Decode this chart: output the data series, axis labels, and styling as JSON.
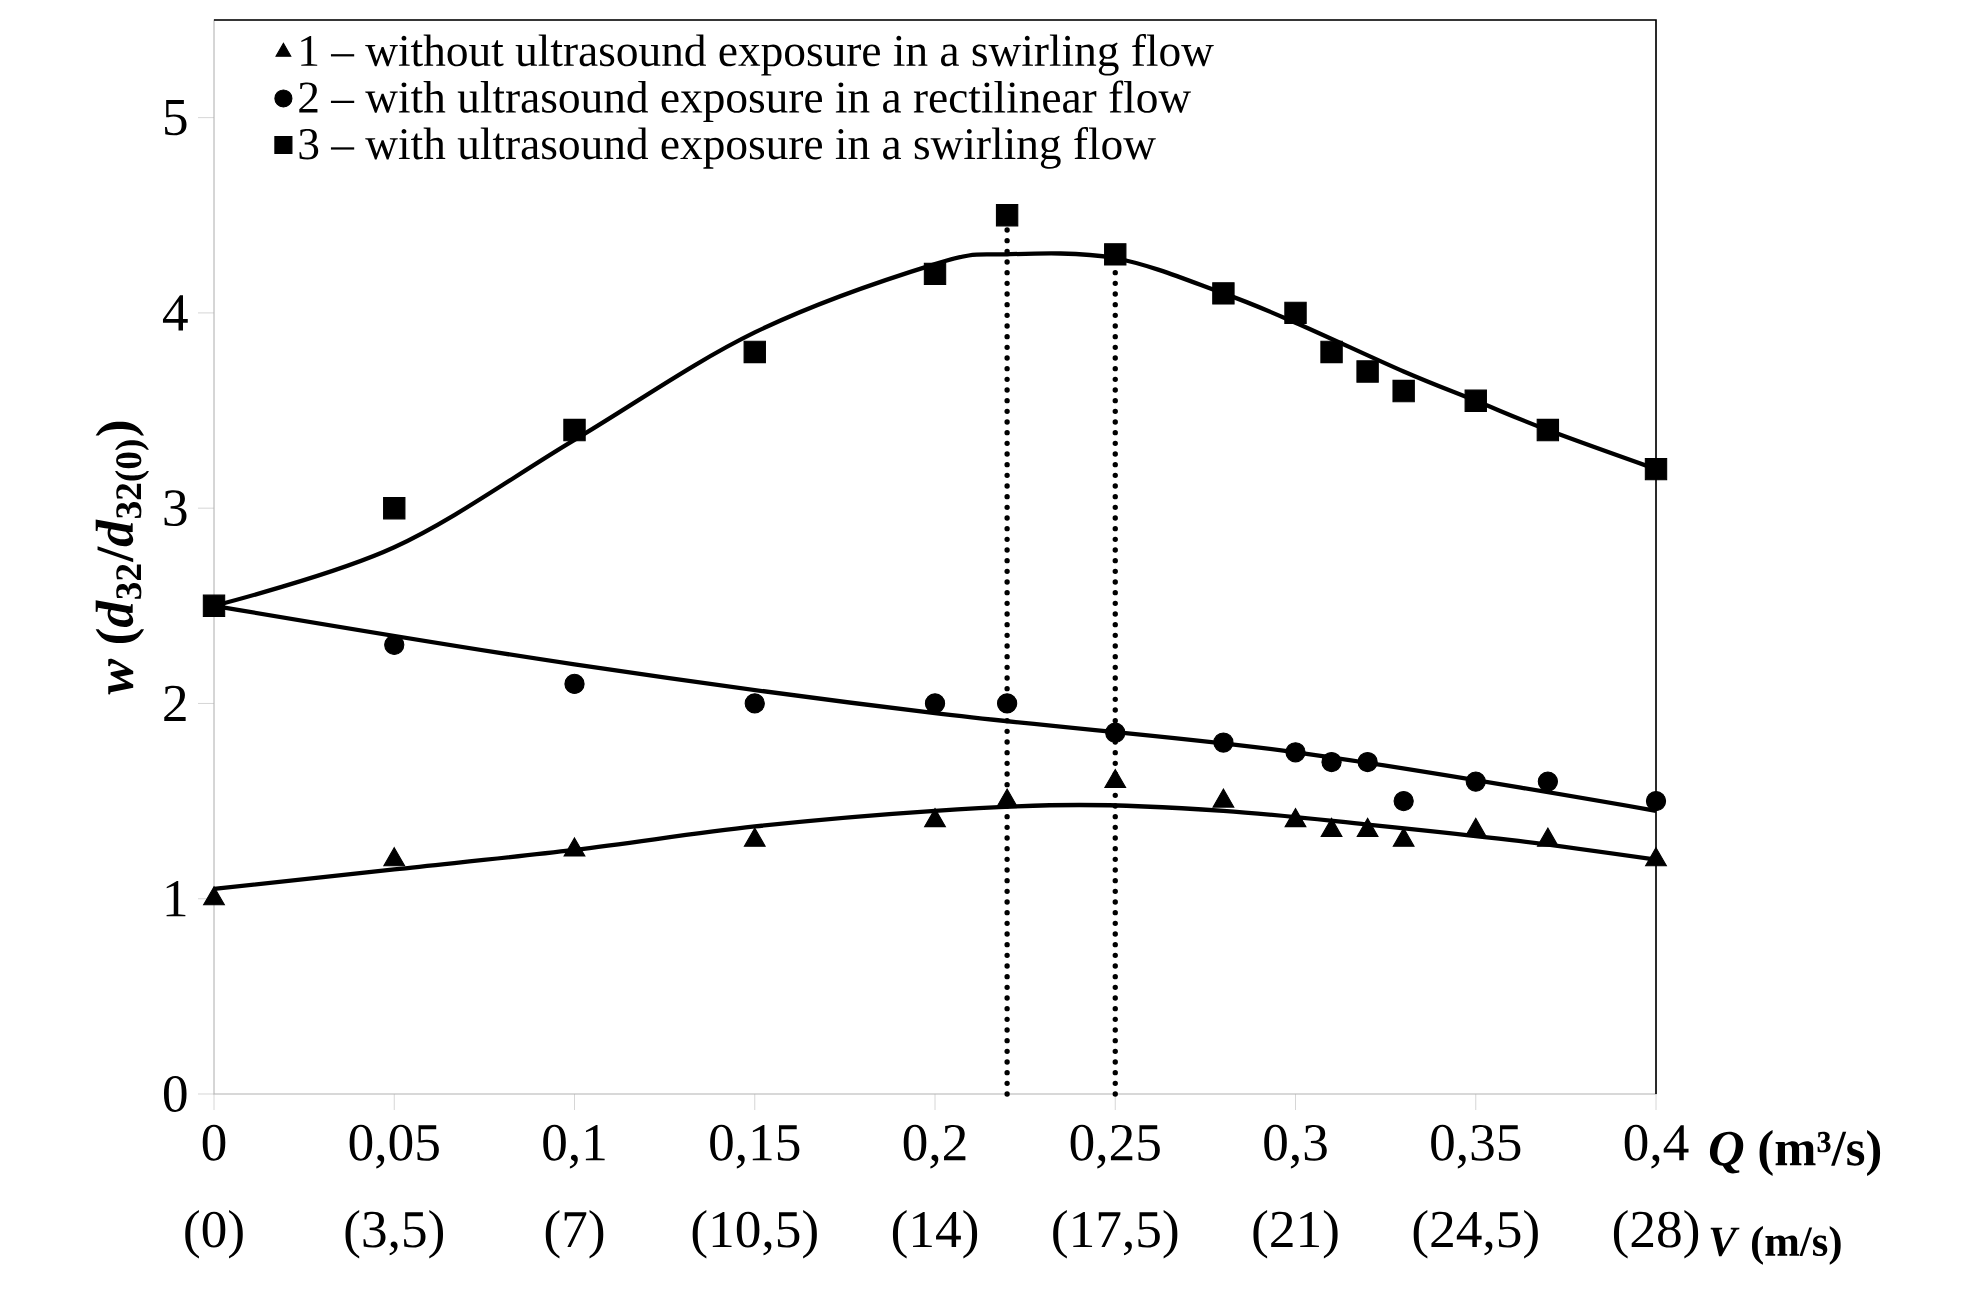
{
  "chart_data": {
    "type": "scatter",
    "ylabel": "*w* (*d*$_{32}$/*d*$_{32(0)}$)",
    "xlabel": "*Q* (m³/s)",
    "x2label": "*V* (m/s)",
    "xlim": [
      0,
      0.4
    ],
    "xticks": [
      0,
      {
        "value": 0.05,
        "label": "0,05"
      },
      {
        "value": 0.1,
        "label": "0,1"
      },
      {
        "value": 0.15,
        "label": "0,15"
      },
      {
        "value": 0.2,
        "label": "0,2"
      },
      {
        "value": 0.25,
        "label": "0,25"
      },
      {
        "value": 0.3,
        "label": "0,3"
      },
      {
        "value": 0.35,
        "label": "0,35"
      },
      {
        "value": 0.4,
        "label": "0,4"
      }
    ],
    "x2lim": [
      0,
      28
    ],
    "x2ticks": [
      {
        "value": 0,
        "label": "(0)"
      },
      {
        "value": 3.5,
        "label": "(3,5)"
      },
      {
        "value": 7,
        "label": "(7)"
      },
      {
        "value": 10.5,
        "label": "(10,5)"
      },
      {
        "value": 14,
        "label": "(14)"
      },
      {
        "value": 17.5,
        "label": "(17,5)"
      },
      {
        "value": 21,
        "label": "(21)"
      },
      {
        "value": 24.5,
        "label": "(24,5)"
      },
      {
        "value": 28,
        "label": "(28)"
      }
    ],
    "ylim": [
      0,
      5.5
    ],
    "yticks": [
      0,
      1,
      2,
      3,
      4,
      5
    ],
    "legend": "top left",
    "series": [
      {
        "name": "1 – without ultrasound exposure in a swirling flow",
        "marker": "triangle",
        "color": "#000000",
        "x": [
          0,
          0.05,
          0.1,
          0.15,
          0.2,
          0.22,
          0.25,
          0.28,
          0.3,
          0.31,
          0.32,
          0.33,
          0.35,
          0.37,
          0.4
        ],
        "values": [
          1.0,
          1.2,
          1.25,
          1.3,
          1.4,
          1.5,
          1.6,
          1.5,
          1.4,
          1.35,
          1.35,
          1.3,
          1.35,
          1.3,
          1.2
        ]
      },
      {
        "name": "2 – with ultrasound exposure in a rectilinear flow",
        "marker": "circle",
        "color": "#000000",
        "x": [
          0.05,
          0.1,
          0.15,
          0.2,
          0.22,
          0.25,
          0.28,
          0.3,
          0.31,
          0.32,
          0.33,
          0.35,
          0.37,
          0.4
        ],
        "values": [
          2.3,
          2.1,
          2.0,
          2.0,
          2.0,
          1.85,
          1.8,
          1.75,
          1.7,
          1.7,
          1.5,
          1.6,
          1.6,
          1.5
        ]
      },
      {
        "name": "3 – with ultrasound exposure in a swirling flow",
        "marker": "square",
        "color": "#000000",
        "x": [
          0,
          0.05,
          0.1,
          0.15,
          0.2,
          0.22,
          0.25,
          0.28,
          0.3,
          0.31,
          0.32,
          0.33,
          0.35,
          0.37,
          0.4
        ],
        "values": [
          2.5,
          3.0,
          3.4,
          3.8,
          4.2,
          4.5,
          4.3,
          4.1,
          4.0,
          3.8,
          3.7,
          3.6,
          3.55,
          3.4,
          3.2
        ]
      },
      {
        "type": "line",
        "line_style": "solid",
        "color": "#000000",
        "x": [
          0,
          0.05,
          0.1,
          0.15,
          0.2,
          0.24,
          0.28,
          0.32,
          0.36,
          0.4
        ],
        "values": [
          1.05,
          1.15,
          1.25,
          1.37,
          1.45,
          1.48,
          1.45,
          1.38,
          1.3,
          1.2
        ]
      },
      {
        "type": "line",
        "line_style": "solid",
        "color": "#000000",
        "x": [
          0,
          0.1,
          0.2,
          0.3,
          0.4
        ],
        "values": [
          2.5,
          2.2,
          1.95,
          1.75,
          1.45
        ]
      },
      {
        "type": "line",
        "line_style": "solid",
        "color": "#000000",
        "x": [
          0,
          0.05,
          0.1,
          0.15,
          0.2,
          0.22,
          0.25,
          0.28,
          0.3,
          0.33,
          0.35,
          0.37,
          0.4
        ],
        "values": [
          2.5,
          2.8,
          3.35,
          3.9,
          4.25,
          4.3,
          4.28,
          4.1,
          3.95,
          3.7,
          3.55,
          3.4,
          3.2
        ]
      }
    ],
    "ref_lines": [
      {
        "axis": "x",
        "value": 0.22,
        "line_style": "dotted",
        "color": "#000000"
      },
      {
        "axis": "x",
        "value": 0.25,
        "line_style": "dotted",
        "color": "#000000"
      }
    ]
  }
}
